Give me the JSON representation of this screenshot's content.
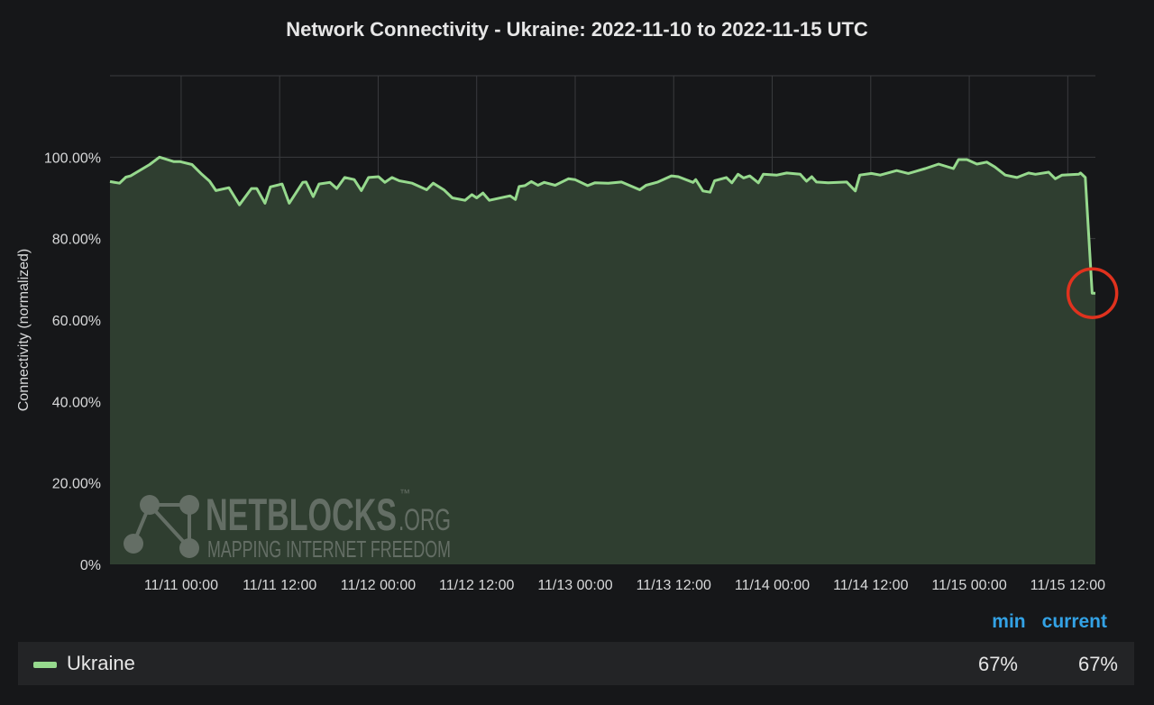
{
  "chart_data": {
    "type": "area",
    "title": "Network Connectivity - Ukraine: 2022-11-10 to 2022-11-15 UTC",
    "xlabel": "",
    "ylabel": "Connectivity (normalized)",
    "ylim": [
      0,
      120
    ],
    "xlim": [
      "2022-11-10 15:20",
      "2022-11-15 15:22"
    ],
    "grid": true,
    "y_ticks": [
      {
        "value": 0,
        "label": "0%"
      },
      {
        "value": 20,
        "label": "20.00%"
      },
      {
        "value": 40,
        "label": "40.00%"
      },
      {
        "value": 60,
        "label": "60.00%"
      },
      {
        "value": 80,
        "label": "80.00%"
      },
      {
        "value": 100,
        "label": "100.00%"
      }
    ],
    "x_ticks": [
      {
        "value": "2022-11-11 00:00",
        "label": "11/11 00:00"
      },
      {
        "value": "2022-11-11 12:00",
        "label": "11/11 12:00"
      },
      {
        "value": "2022-11-12 00:00",
        "label": "11/12 00:00"
      },
      {
        "value": "2022-11-12 12:00",
        "label": "11/12 12:00"
      },
      {
        "value": "2022-11-13 00:00",
        "label": "11/13 00:00"
      },
      {
        "value": "2022-11-13 12:00",
        "label": "11/13 12:00"
      },
      {
        "value": "2022-11-14 00:00",
        "label": "11/14 00:00"
      },
      {
        "value": "2022-11-14 12:00",
        "label": "11/14 12:00"
      },
      {
        "value": "2022-11-15 00:00",
        "label": "11/15 00:00"
      },
      {
        "value": "2022-11-15 12:00",
        "label": "11/15 12:00"
      }
    ],
    "series": [
      {
        "name": "Ukraine",
        "color": "#96d98d",
        "fill": "#2f3e30",
        "points": [
          [
            "2022-11-10 15:20",
            94.0
          ],
          [
            "2022-11-10 16:30",
            93.6
          ],
          [
            "2022-11-10 17:16",
            95.1
          ],
          [
            "2022-11-10 17:51",
            95.4
          ],
          [
            "2022-11-10 20:10",
            98.2
          ],
          [
            "2022-11-10 21:22",
            100.0
          ],
          [
            "2022-11-10 23:07",
            98.9
          ],
          [
            "2022-11-10 23:53",
            98.9
          ],
          [
            "2022-11-11 01:19",
            98.2
          ],
          [
            "2022-11-11 02:31",
            95.8
          ],
          [
            "2022-11-11 03:28",
            94.1
          ],
          [
            "2022-11-11 04:14",
            91.8
          ],
          [
            "2022-11-11 05:49",
            92.5
          ],
          [
            "2022-11-11 07:06",
            88.3
          ],
          [
            "2022-11-11 08:34",
            92.3
          ],
          [
            "2022-11-11 09:13",
            92.3
          ],
          [
            "2022-11-11 10:13",
            88.7
          ],
          [
            "2022-11-11 10:52",
            92.7
          ],
          [
            "2022-11-11 12:18",
            93.4
          ],
          [
            "2022-11-11 13:10",
            88.7
          ],
          [
            "2022-11-11 14:49",
            93.8
          ],
          [
            "2022-11-11 15:13",
            93.9
          ],
          [
            "2022-11-11 16:05",
            90.3
          ],
          [
            "2022-11-11 16:48",
            93.4
          ],
          [
            "2022-11-11 18:07",
            93.8
          ],
          [
            "2022-11-11 18:57",
            92.3
          ],
          [
            "2022-11-11 19:55",
            95.0
          ],
          [
            "2022-11-11 21:05",
            94.5
          ],
          [
            "2022-11-11 21:57",
            91.8
          ],
          [
            "2022-11-11 22:50",
            95.0
          ],
          [
            "2022-11-12 00:02",
            95.2
          ],
          [
            "2022-11-12 00:49",
            93.8
          ],
          [
            "2022-11-12 01:41",
            95.0
          ],
          [
            "2022-11-12 02:34",
            94.2
          ],
          [
            "2022-11-12 04:09",
            93.6
          ],
          [
            "2022-11-12 05:55",
            92.0
          ],
          [
            "2022-11-12 06:42",
            93.6
          ],
          [
            "2022-11-12 08:03",
            91.9
          ],
          [
            "2022-11-12 09:02",
            90.0
          ],
          [
            "2022-11-12 10:35",
            89.4
          ],
          [
            "2022-11-12 11:25",
            90.8
          ],
          [
            "2022-11-12 12:00",
            90.0
          ],
          [
            "2022-11-12 12:46",
            91.2
          ],
          [
            "2022-11-12 13:32",
            89.4
          ],
          [
            "2022-11-12 16:04",
            90.5
          ],
          [
            "2022-11-12 16:43",
            89.6
          ],
          [
            "2022-11-12 17:10",
            92.8
          ],
          [
            "2022-11-12 17:53",
            93.0
          ],
          [
            "2022-11-12 18:40",
            94.0
          ],
          [
            "2022-11-12 19:28",
            93.1
          ],
          [
            "2022-11-12 20:14",
            93.8
          ],
          [
            "2022-11-12 21:34",
            93.1
          ],
          [
            "2022-11-12 23:10",
            94.7
          ],
          [
            "2022-11-12 23:58",
            94.5
          ],
          [
            "2022-11-13 01:31",
            93.0
          ],
          [
            "2022-11-13 02:23",
            93.7
          ],
          [
            "2022-11-13 04:02",
            93.6
          ],
          [
            "2022-11-13 05:38",
            93.9
          ],
          [
            "2022-11-13 07:52",
            92.0
          ],
          [
            "2022-11-13 08:38",
            93.1
          ],
          [
            "2022-11-13 10:04",
            93.9
          ],
          [
            "2022-11-13 11:43",
            95.4
          ],
          [
            "2022-11-13 12:33",
            95.2
          ],
          [
            "2022-11-13 14:21",
            93.8
          ],
          [
            "2022-11-13 14:41",
            94.5
          ],
          [
            "2022-11-13 15:34",
            91.7
          ],
          [
            "2022-11-13 16:26",
            91.4
          ],
          [
            "2022-11-13 16:59",
            94.2
          ],
          [
            "2022-11-13 18:25",
            95.0
          ],
          [
            "2022-11-13 19:05",
            93.7
          ],
          [
            "2022-11-13 19:50",
            95.8
          ],
          [
            "2022-11-13 20:30",
            94.9
          ],
          [
            "2022-11-13 21:16",
            95.4
          ],
          [
            "2022-11-13 22:19",
            93.7
          ],
          [
            "2022-11-13 22:55",
            95.8
          ],
          [
            "2022-11-14 00:34",
            95.6
          ],
          [
            "2022-11-14 01:46",
            96.1
          ],
          [
            "2022-11-14 03:25",
            95.8
          ],
          [
            "2022-11-14 04:11",
            94.1
          ],
          [
            "2022-11-14 04:49",
            95.2
          ],
          [
            "2022-11-14 05:23",
            93.9
          ],
          [
            "2022-11-14 06:49",
            93.7
          ],
          [
            "2022-11-14 09:05",
            93.9
          ],
          [
            "2022-11-14 10:07",
            91.7
          ],
          [
            "2022-11-14 10:40",
            95.6
          ],
          [
            "2022-11-14 12:05",
            96.0
          ],
          [
            "2022-11-14 13:09",
            95.6
          ],
          [
            "2022-11-14 15:10",
            96.7
          ],
          [
            "2022-11-14 16:35",
            96.0
          ],
          [
            "2022-11-14 18:38",
            97.2
          ],
          [
            "2022-11-14 20:16",
            98.3
          ],
          [
            "2022-11-14 22:04",
            97.2
          ],
          [
            "2022-11-14 22:42",
            99.4
          ],
          [
            "2022-11-14 23:43",
            99.4
          ],
          [
            "2022-11-15 00:56",
            98.3
          ],
          [
            "2022-11-15 02:08",
            98.8
          ],
          [
            "2022-11-15 03:07",
            97.6
          ],
          [
            "2022-11-15 04:23",
            95.6
          ],
          [
            "2022-11-15 05:49",
            95.0
          ],
          [
            "2022-11-15 07:14",
            96.1
          ],
          [
            "2022-11-15 08:04",
            95.8
          ],
          [
            "2022-11-15 09:41",
            96.3
          ],
          [
            "2022-11-15 10:29",
            94.7
          ],
          [
            "2022-11-15 11:18",
            95.6
          ],
          [
            "2022-11-15 13:20",
            95.8
          ],
          [
            "2022-11-15 13:33",
            96.1
          ],
          [
            "2022-11-15 14:08",
            95.0
          ],
          [
            "2022-11-15 14:58",
            66.6
          ],
          [
            "2022-11-15 15:22",
            66.6
          ]
        ]
      }
    ],
    "annotations": [
      {
        "type": "circle",
        "at": [
          "2022-11-15 15:00",
          66.6
        ],
        "color": "#e0321e"
      }
    ],
    "legend": {
      "placement": "bottom",
      "columns": [
        "min",
        "current"
      ],
      "header_color": "#33a2e5",
      "rows": [
        {
          "name": "Ukraine",
          "min": "67%",
          "current": "67%"
        }
      ]
    },
    "watermark": {
      "name": "NETBLOCKS",
      "suffix": ".ORG",
      "tm": "™",
      "tagline": "MAPPING INTERNET FREEDOM"
    }
  }
}
